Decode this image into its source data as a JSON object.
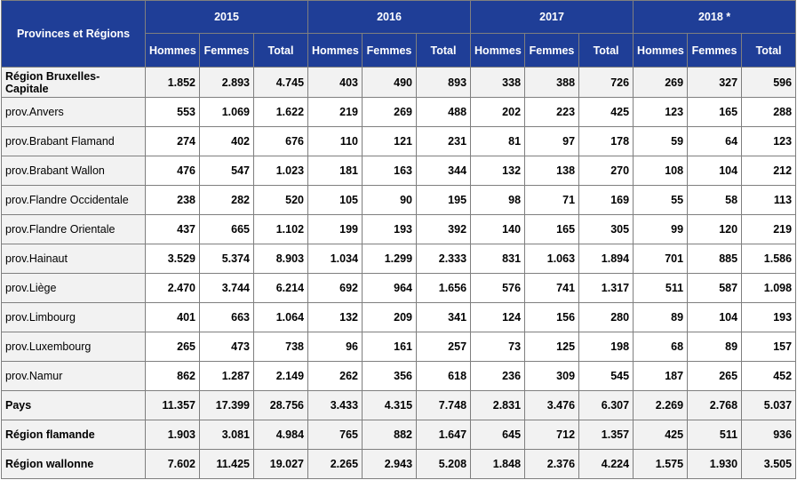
{
  "header": {
    "region_col": "Provinces et Régions",
    "years": [
      "2015",
      "2016",
      "2017",
      "2018 *"
    ],
    "subcols": [
      "Hommes",
      "Femmes",
      "Total"
    ]
  },
  "rows": [
    {
      "label": "Région Bruxelles-Capitale",
      "bold": true,
      "values": [
        "1.852",
        "2.893",
        "4.745",
        "403",
        "490",
        "893",
        "338",
        "388",
        "726",
        "269",
        "327",
        "596"
      ]
    },
    {
      "label": "prov.Anvers",
      "bold": false,
      "values": [
        "553",
        "1.069",
        "1.622",
        "219",
        "269",
        "488",
        "202",
        "223",
        "425",
        "123",
        "165",
        "288"
      ]
    },
    {
      "label": "prov.Brabant Flamand",
      "bold": false,
      "values": [
        "274",
        "402",
        "676",
        "110",
        "121",
        "231",
        "81",
        "97",
        "178",
        "59",
        "64",
        "123"
      ]
    },
    {
      "label": "prov.Brabant Wallon",
      "bold": false,
      "values": [
        "476",
        "547",
        "1.023",
        "181",
        "163",
        "344",
        "132",
        "138",
        "270",
        "108",
        "104",
        "212"
      ]
    },
    {
      "label": "prov.Flandre Occidentale",
      "bold": false,
      "values": [
        "238",
        "282",
        "520",
        "105",
        "90",
        "195",
        "98",
        "71",
        "169",
        "55",
        "58",
        "113"
      ]
    },
    {
      "label": "prov.Flandre Orientale",
      "bold": false,
      "values": [
        "437",
        "665",
        "1.102",
        "199",
        "193",
        "392",
        "140",
        "165",
        "305",
        "99",
        "120",
        "219"
      ]
    },
    {
      "label": "prov.Hainaut",
      "bold": false,
      "values": [
        "3.529",
        "5.374",
        "8.903",
        "1.034",
        "1.299",
        "2.333",
        "831",
        "1.063",
        "1.894",
        "701",
        "885",
        "1.586"
      ]
    },
    {
      "label": "prov.Liège",
      "bold": false,
      "values": [
        "2.470",
        "3.744",
        "6.214",
        "692",
        "964",
        "1.656",
        "576",
        "741",
        "1.317",
        "511",
        "587",
        "1.098"
      ]
    },
    {
      "label": "prov.Limbourg",
      "bold": false,
      "values": [
        "401",
        "663",
        "1.064",
        "132",
        "209",
        "341",
        "124",
        "156",
        "280",
        "89",
        "104",
        "193"
      ]
    },
    {
      "label": "prov.Luxembourg",
      "bold": false,
      "values": [
        "265",
        "473",
        "738",
        "96",
        "161",
        "257",
        "73",
        "125",
        "198",
        "68",
        "89",
        "157"
      ]
    },
    {
      "label": "prov.Namur",
      "bold": false,
      "values": [
        "862",
        "1.287",
        "2.149",
        "262",
        "356",
        "618",
        "236",
        "309",
        "545",
        "187",
        "265",
        "452"
      ]
    },
    {
      "label": "Pays",
      "bold": true,
      "values": [
        "11.357",
        "17.399",
        "28.756",
        "3.433",
        "4.315",
        "7.748",
        "2.831",
        "3.476",
        "6.307",
        "2.269",
        "2.768",
        "5.037"
      ]
    },
    {
      "label": "Région flamande",
      "bold": true,
      "values": [
        "1.903",
        "3.081",
        "4.984",
        "765",
        "882",
        "1.647",
        "645",
        "712",
        "1.357",
        "425",
        "511",
        "936"
      ]
    },
    {
      "label": "Région wallonne",
      "bold": true,
      "values": [
        "7.602",
        "11.425",
        "19.027",
        "2.265",
        "2.943",
        "5.208",
        "1.848",
        "2.376",
        "4.224",
        "1.575",
        "1.930",
        "3.505"
      ]
    }
  ]
}
